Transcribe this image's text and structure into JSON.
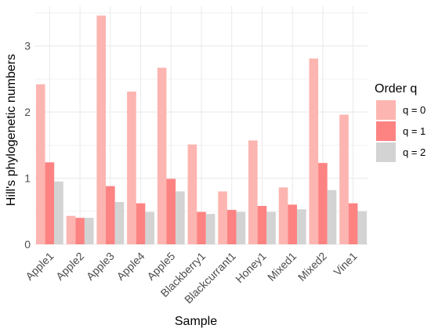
{
  "chart_data": {
    "type": "bar",
    "title": "",
    "xlabel": "Sample",
    "ylabel": "Hill's phylogenetic numbers",
    "ylim": [
      0,
      3.6
    ],
    "yticks": [
      "0",
      "1",
      "2",
      "3"
    ],
    "grid": true,
    "legend": {
      "title": "Order q",
      "position": "right"
    },
    "categories": [
      "Apple1",
      "Apple2",
      "Apple3",
      "Apple4",
      "Apple5",
      "Blackberry1",
      "Blackcurrant1",
      "Honey1",
      "Mixed1",
      "Mixed2",
      "Vine1"
    ],
    "series": [
      {
        "name": "q = 0",
        "color": "#fcb5b0",
        "values": [
          2.42,
          0.43,
          3.46,
          2.31,
          2.67,
          1.51,
          0.8,
          1.57,
          0.86,
          2.81,
          1.96
        ]
      },
      {
        "name": "q = 1",
        "color": "#fd8383",
        "values": [
          1.24,
          0.4,
          0.88,
          0.62,
          0.99,
          0.49,
          0.52,
          0.58,
          0.6,
          1.23,
          0.62
        ]
      },
      {
        "name": "q = 2",
        "color": "#d3d3d3",
        "values": [
          0.95,
          0.4,
          0.64,
          0.49,
          0.8,
          0.46,
          0.49,
          0.49,
          0.53,
          0.82,
          0.5
        ]
      }
    ]
  }
}
